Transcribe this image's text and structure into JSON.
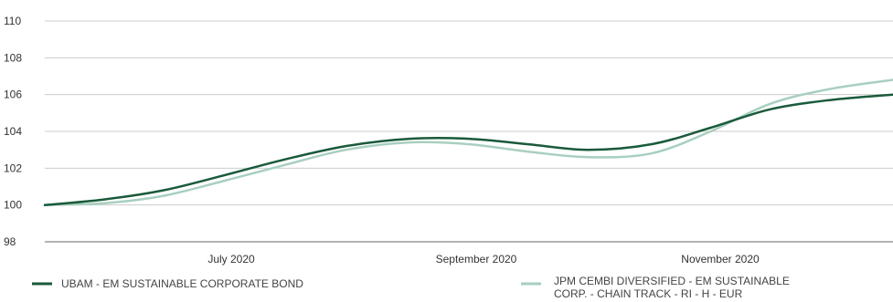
{
  "chart_data": {
    "type": "line",
    "title": "",
    "xlabel": "",
    "ylabel": "",
    "ylim": [
      98,
      110
    ],
    "y_ticks": [
      98,
      100,
      102,
      104,
      106,
      108,
      110
    ],
    "x_tick_labels": [
      "July 2020",
      "September 2020",
      "November 2020"
    ],
    "grid": "horizontal",
    "legend": "bottom",
    "x": [
      "2020-05-31",
      "2020-06-15",
      "2020-06-30",
      "2020-07-15",
      "2020-07-31",
      "2020-08-15",
      "2020-08-31",
      "2020-09-15",
      "2020-09-30",
      "2020-10-15",
      "2020-10-31",
      "2020-11-15",
      "2020-11-30",
      "2020-12-15",
      "2020-12-31"
    ],
    "series": [
      {
        "name": "UBAM - EM SUSTAINABLE CORPORATE BOND",
        "color": "#1a5a3a",
        "values": [
          100.0,
          100.3,
          100.8,
          101.6,
          102.5,
          103.2,
          103.6,
          103.6,
          103.3,
          103.0,
          103.3,
          104.2,
          105.2,
          105.7,
          106.0
        ]
      },
      {
        "name": "JPM CEMBI DIVERSIFIED - EM SUSTAINABLE CORP. - CHAIN TRACK - RI - H  - EUR",
        "color": "#a8cfc0",
        "values": [
          100.0,
          100.1,
          100.5,
          101.3,
          102.2,
          103.0,
          103.4,
          103.3,
          102.9,
          102.6,
          102.8,
          104.0,
          105.5,
          106.3,
          106.8
        ]
      }
    ]
  }
}
